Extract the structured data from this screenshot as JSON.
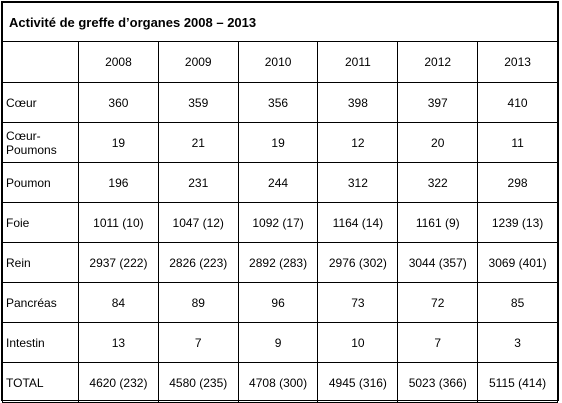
{
  "title": "Activité de greffe d’organes 2008 – 2013",
  "years": [
    "2008",
    "2009",
    "2010",
    "2011",
    "2012",
    "2013"
  ],
  "rows": [
    {
      "label": "Cœur",
      "values": [
        "360",
        "359",
        "356",
        "398",
        "397",
        "410"
      ]
    },
    {
      "label": "Cœur-Poumons",
      "values": [
        "19",
        "21",
        "19",
        "12",
        "20",
        "11"
      ]
    },
    {
      "label": "Poumon",
      "values": [
        "196",
        "231",
        "244",
        "312",
        "322",
        "298"
      ]
    },
    {
      "label": "Foie",
      "values": [
        "1011 (10)",
        "1047 (12)",
        "1092 (17)",
        "1164 (14)",
        "1161 (9)",
        "1239 (13)"
      ]
    },
    {
      "label": "Rein",
      "values": [
        "2937 (222)",
        "2826 (223)",
        "2892 (283)",
        "2976 (302)",
        "3044 (357)",
        "3069 (401)"
      ]
    },
    {
      "label": "Pancréas",
      "values": [
        "84",
        "89",
        "96",
        "73",
        "72",
        "85"
      ]
    },
    {
      "label": "Intestin",
      "values": [
        "13",
        "7",
        "9",
        "10",
        "7",
        "3"
      ]
    },
    {
      "label": "TOTAL",
      "values": [
        "4620 (232)",
        "4580 (235)",
        "4708 (300)",
        "4945 (316)",
        "5023 (366)",
        "5115 (414)"
      ]
    }
  ]
}
